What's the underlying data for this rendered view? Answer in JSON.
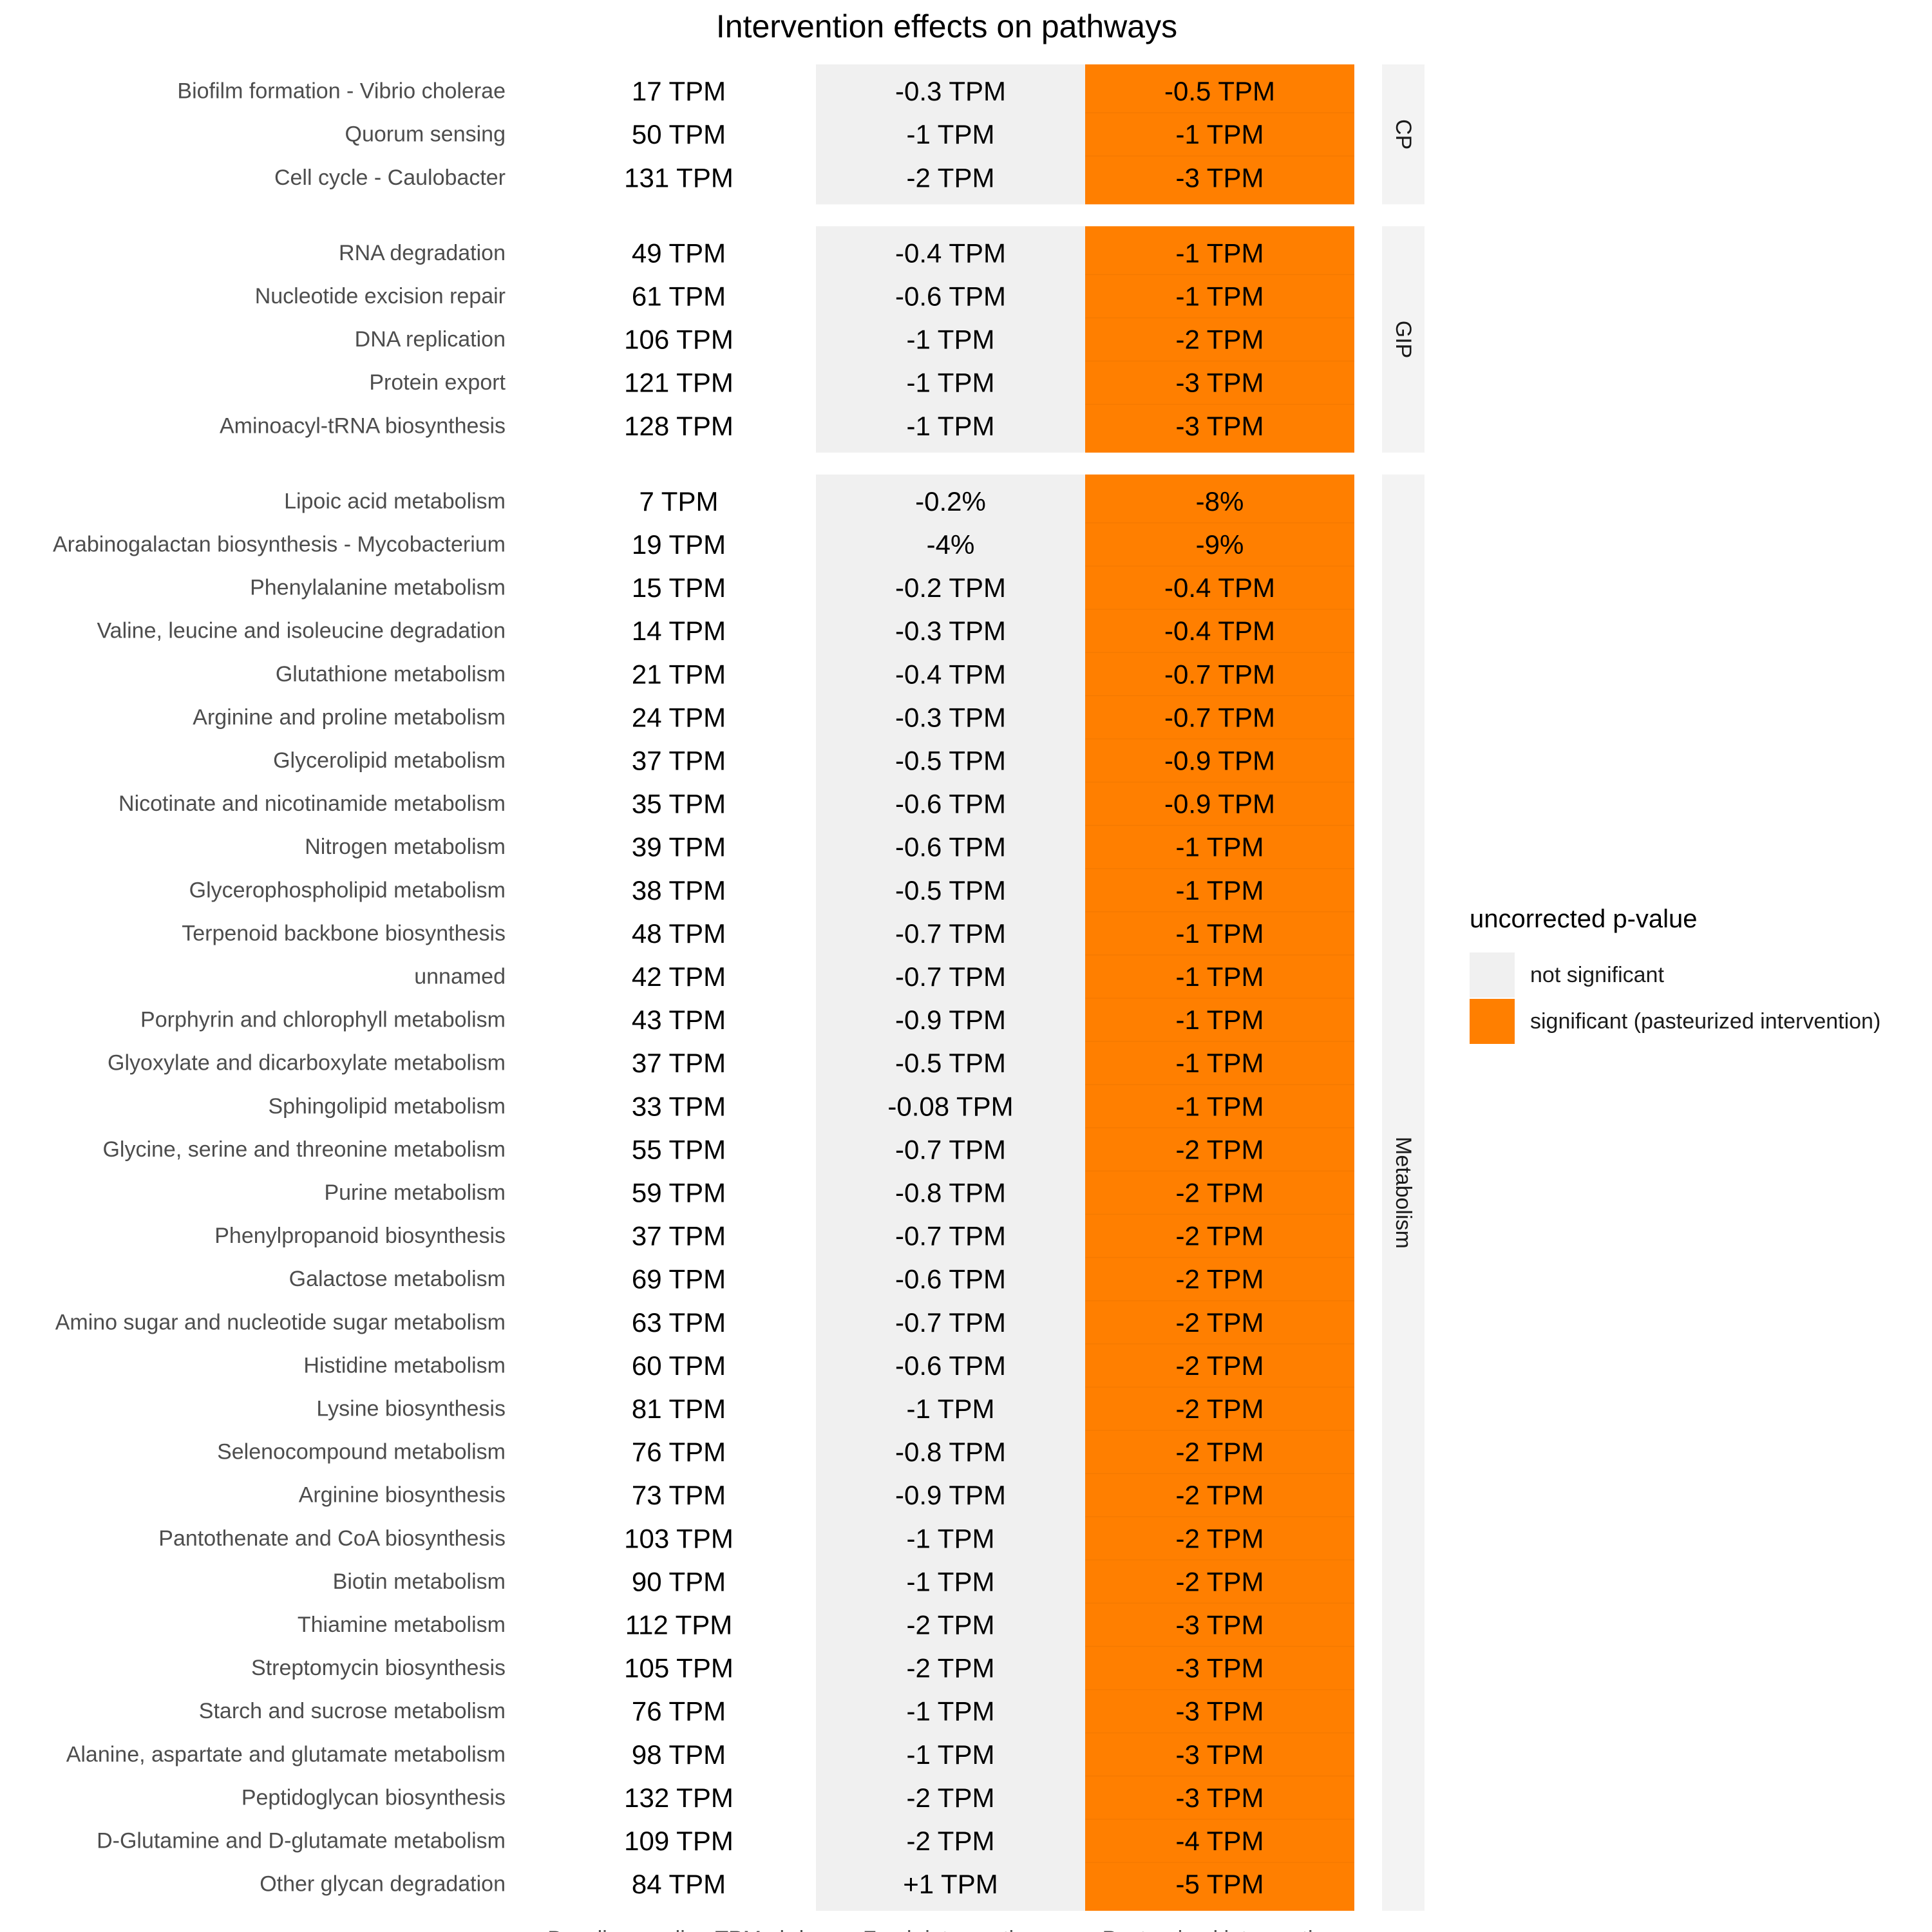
{
  "chart_data": {
    "type": "table",
    "title": "Intervention effects on pathways",
    "columns": [
      "Baseline median TPM abd.",
      "Fresh intervention",
      "Pasteurized intervention"
    ],
    "colors": {
      "not_significant": "#f0f0f0",
      "significant": "#ff7f00",
      "strip": "#f3f3f3"
    },
    "legend": {
      "title": "uncorrected p-value",
      "items": [
        {
          "label": "not significant",
          "color": "#f0f0f0"
        },
        {
          "label": "significant (pasteurized intervention)",
          "color": "#ff7f00"
        }
      ]
    },
    "groups": [
      {
        "name": "CP",
        "rows": [
          {
            "pathway": "Biofilm formation - Vibrio cholerae",
            "baseline": "17 TPM",
            "fresh": "-0.3 TPM",
            "pasteurized": "-0.5 TPM"
          },
          {
            "pathway": "Quorum sensing",
            "baseline": "50 TPM",
            "fresh": "-1 TPM",
            "pasteurized": "-1 TPM"
          },
          {
            "pathway": "Cell cycle - Caulobacter",
            "baseline": "131 TPM",
            "fresh": "-2 TPM",
            "pasteurized": "-3 TPM"
          }
        ]
      },
      {
        "name": "GIP",
        "rows": [
          {
            "pathway": "RNA degradation",
            "baseline": "49 TPM",
            "fresh": "-0.4 TPM",
            "pasteurized": "-1 TPM"
          },
          {
            "pathway": "Nucleotide excision repair",
            "baseline": "61 TPM",
            "fresh": "-0.6 TPM",
            "pasteurized": "-1 TPM"
          },
          {
            "pathway": "DNA replication",
            "baseline": "106 TPM",
            "fresh": "-1 TPM",
            "pasteurized": "-2 TPM"
          },
          {
            "pathway": "Protein export",
            "baseline": "121 TPM",
            "fresh": "-1 TPM",
            "pasteurized": "-3 TPM"
          },
          {
            "pathway": "Aminoacyl-tRNA biosynthesis",
            "baseline": "128 TPM",
            "fresh": "-1 TPM",
            "pasteurized": "-3 TPM"
          }
        ]
      },
      {
        "name": "Metabolism",
        "rows": [
          {
            "pathway": "Lipoic acid metabolism",
            "baseline": "7 TPM",
            "fresh": "-0.2%",
            "pasteurized": "-8%"
          },
          {
            "pathway": "Arabinogalactan biosynthesis - Mycobacterium",
            "baseline": "19 TPM",
            "fresh": "-4%",
            "pasteurized": "-9%"
          },
          {
            "pathway": "Phenylalanine metabolism",
            "baseline": "15 TPM",
            "fresh": "-0.2 TPM",
            "pasteurized": "-0.4 TPM"
          },
          {
            "pathway": "Valine, leucine and isoleucine degradation",
            "baseline": "14 TPM",
            "fresh": "-0.3 TPM",
            "pasteurized": "-0.4 TPM"
          },
          {
            "pathway": "Glutathione metabolism",
            "baseline": "21 TPM",
            "fresh": "-0.4 TPM",
            "pasteurized": "-0.7 TPM"
          },
          {
            "pathway": "Arginine and proline metabolism",
            "baseline": "24 TPM",
            "fresh": "-0.3 TPM",
            "pasteurized": "-0.7 TPM"
          },
          {
            "pathway": "Glycerolipid metabolism",
            "baseline": "37 TPM",
            "fresh": "-0.5 TPM",
            "pasteurized": "-0.9 TPM"
          },
          {
            "pathway": "Nicotinate and nicotinamide metabolism",
            "baseline": "35 TPM",
            "fresh": "-0.6 TPM",
            "pasteurized": "-0.9 TPM"
          },
          {
            "pathway": "Nitrogen metabolism",
            "baseline": "39 TPM",
            "fresh": "-0.6 TPM",
            "pasteurized": "-1 TPM"
          },
          {
            "pathway": "Glycerophospholipid metabolism",
            "baseline": "38 TPM",
            "fresh": "-0.5 TPM",
            "pasteurized": "-1 TPM"
          },
          {
            "pathway": "Terpenoid backbone biosynthesis",
            "baseline": "48 TPM",
            "fresh": "-0.7 TPM",
            "pasteurized": "-1 TPM"
          },
          {
            "pathway": "unnamed",
            "baseline": "42 TPM",
            "fresh": "-0.7 TPM",
            "pasteurized": "-1 TPM"
          },
          {
            "pathway": "Porphyrin and chlorophyll metabolism",
            "baseline": "43 TPM",
            "fresh": "-0.9 TPM",
            "pasteurized": "-1 TPM"
          },
          {
            "pathway": "Glyoxylate and dicarboxylate metabolism",
            "baseline": "37 TPM",
            "fresh": "-0.5 TPM",
            "pasteurized": "-1 TPM"
          },
          {
            "pathway": "Sphingolipid metabolism",
            "baseline": "33 TPM",
            "fresh": "-0.08 TPM",
            "pasteurized": "-1 TPM"
          },
          {
            "pathway": "Glycine, serine and threonine metabolism",
            "baseline": "55 TPM",
            "fresh": "-0.7 TPM",
            "pasteurized": "-2 TPM"
          },
          {
            "pathway": "Purine metabolism",
            "baseline": "59 TPM",
            "fresh": "-0.8 TPM",
            "pasteurized": "-2 TPM"
          },
          {
            "pathway": "Phenylpropanoid biosynthesis",
            "baseline": "37 TPM",
            "fresh": "-0.7 TPM",
            "pasteurized": "-2 TPM"
          },
          {
            "pathway": "Galactose metabolism",
            "baseline": "69 TPM",
            "fresh": "-0.6 TPM",
            "pasteurized": "-2 TPM"
          },
          {
            "pathway": "Amino sugar and nucleotide sugar metabolism",
            "baseline": "63 TPM",
            "fresh": "-0.7 TPM",
            "pasteurized": "-2 TPM"
          },
          {
            "pathway": "Histidine metabolism",
            "baseline": "60 TPM",
            "fresh": "-0.6 TPM",
            "pasteurized": "-2 TPM"
          },
          {
            "pathway": "Lysine biosynthesis",
            "baseline": "81 TPM",
            "fresh": "-1 TPM",
            "pasteurized": "-2 TPM"
          },
          {
            "pathway": "Selenocompound metabolism",
            "baseline": "76 TPM",
            "fresh": "-0.8 TPM",
            "pasteurized": "-2 TPM"
          },
          {
            "pathway": "Arginine biosynthesis",
            "baseline": "73 TPM",
            "fresh": "-0.9 TPM",
            "pasteurized": "-2 TPM"
          },
          {
            "pathway": "Pantothenate and CoA biosynthesis",
            "baseline": "103 TPM",
            "fresh": "-1 TPM",
            "pasteurized": "-2 TPM"
          },
          {
            "pathway": "Biotin metabolism",
            "baseline": "90 TPM",
            "fresh": "-1 TPM",
            "pasteurized": "-2 TPM"
          },
          {
            "pathway": "Thiamine metabolism",
            "baseline": "112 TPM",
            "fresh": "-2 TPM",
            "pasteurized": "-3 TPM"
          },
          {
            "pathway": "Streptomycin biosynthesis",
            "baseline": "105 TPM",
            "fresh": "-2 TPM",
            "pasteurized": "-3 TPM"
          },
          {
            "pathway": "Starch and sucrose metabolism",
            "baseline": "76 TPM",
            "fresh": "-1 TPM",
            "pasteurized": "-3 TPM"
          },
          {
            "pathway": "Alanine, aspartate and glutamate metabolism",
            "baseline": "98 TPM",
            "fresh": "-1 TPM",
            "pasteurized": "-3 TPM"
          },
          {
            "pathway": "Peptidoglycan biosynthesis",
            "baseline": "132 TPM",
            "fresh": "-2 TPM",
            "pasteurized": "-3 TPM"
          },
          {
            "pathway": "D-Glutamine and D-glutamate metabolism",
            "baseline": "109 TPM",
            "fresh": "-2 TPM",
            "pasteurized": "-4 TPM"
          },
          {
            "pathway": "Other glycan degradation",
            "baseline": "84 TPM",
            "fresh": "+1 TPM",
            "pasteurized": "-5 TPM"
          }
        ]
      }
    ]
  }
}
